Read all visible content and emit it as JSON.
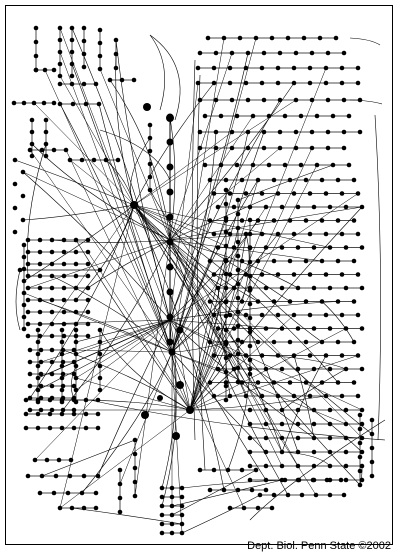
{
  "figure": {
    "credit": "Dept. Biol. Penn State ©2002",
    "colors": {
      "ink": "#000000",
      "background": "#ffffff"
    },
    "description_type": "network-diagram",
    "node_count_approx": 880
  }
}
